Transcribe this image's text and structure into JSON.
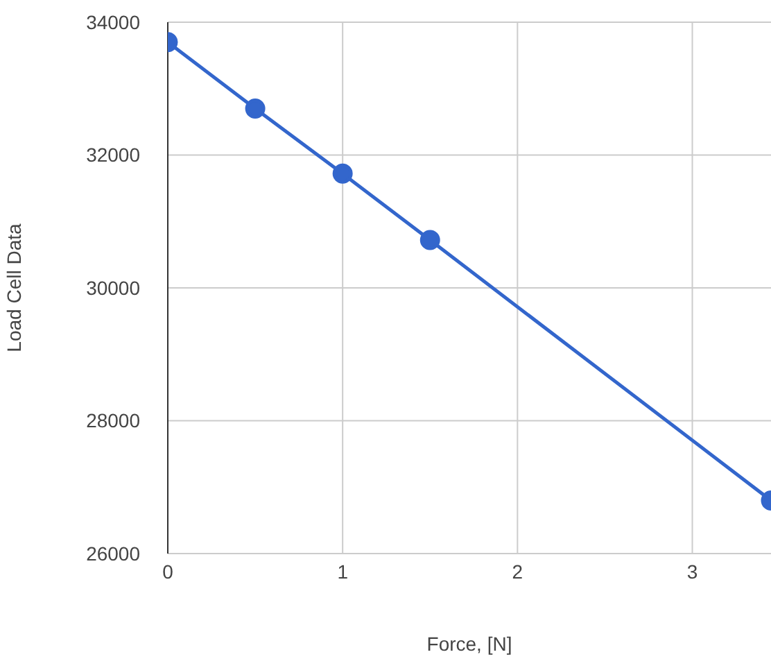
{
  "chart_data": {
    "type": "line",
    "xlabel": "Force, [N]",
    "ylabel": "Load Cell Data",
    "x": [
      0,
      0.5,
      1,
      1.5,
      3.45
    ],
    "series": [
      {
        "color": "#3366cc",
        "values": [
          33700,
          32700,
          31720,
          30720,
          26800
        ]
      }
    ],
    "xlim": [
      0,
      3.45
    ],
    "xticks": [
      0,
      1,
      2,
      3
    ],
    "ylim": [
      26000,
      34000
    ],
    "yticks": [
      26000,
      28000,
      30000,
      32000,
      34000
    ],
    "grid": true,
    "marker": "circle",
    "line_style": "solid",
    "legend": false
  }
}
